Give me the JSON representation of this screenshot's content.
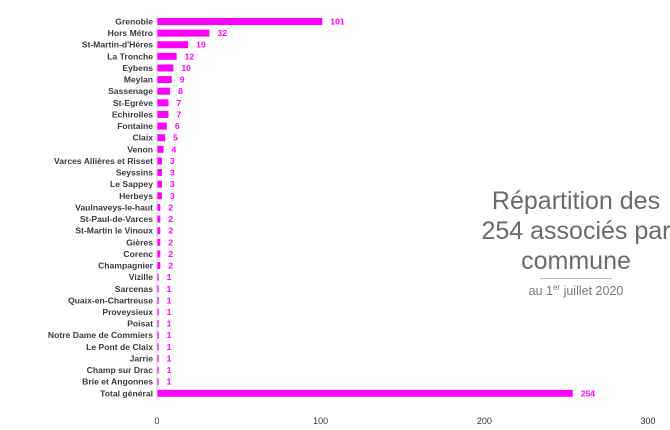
{
  "chart_data": {
    "type": "bar",
    "orientation": "horizontal",
    "categories": [
      "Grenoble",
      "Hors Métro",
      "St-Martin-d'Hères",
      "La Tronche",
      "Eybens",
      "Meylan",
      "Sassenage",
      "St-Egrève",
      "Echirolles",
      "Fontaine",
      "Claix",
      "Venon",
      "Varces Allières et Risset",
      "Seyssins",
      "Le Sappey",
      "Herbeys",
      "Vaulnaveys-le-haut",
      "St-Paul-de-Varces",
      "St-Martin le Vinoux",
      "Gières",
      "Corenc",
      "Champagnier",
      "Vizille",
      "Sarcenas",
      "Quaix-en-Chartreuse",
      "Proveysieux",
      "Poisat",
      "Notre Dame de Commiers",
      "Le Pont de Claix",
      "Jarrie",
      "Champ sur Drac",
      "Brie et Angonnes",
      "Total général"
    ],
    "values": [
      101,
      32,
      19,
      12,
      10,
      9,
      8,
      7,
      7,
      6,
      5,
      4,
      3,
      3,
      3,
      3,
      2,
      2,
      2,
      2,
      2,
      2,
      1,
      1,
      1,
      1,
      1,
      1,
      1,
      1,
      1,
      1,
      254
    ],
    "xlim": [
      0,
      300
    ],
    "xticks": [
      "0",
      "100",
      "200",
      "300"
    ],
    "grid": false,
    "legend": "none",
    "bar_color": "#ff00ff",
    "label_color": "#ff00ff"
  },
  "title": {
    "lines": [
      "Répartition des",
      "254 associés par",
      "commune"
    ],
    "subtitle_prefix": "au 1",
    "subtitle_sup": "er",
    "subtitle_suffix": " juillet 2020"
  }
}
